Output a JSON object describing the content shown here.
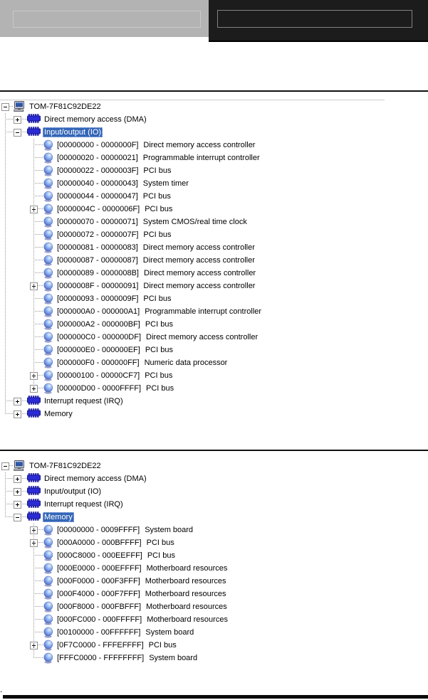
{
  "header": {
    "left_tab": {
      "value": ""
    },
    "right_tab": {
      "value": ""
    }
  },
  "colors": {
    "selection_bg": "#3466b8",
    "chip_blue": "#2b2bd5",
    "header_left_bg": "#b3b3b3",
    "header_right_bg": "#1c1c1c"
  },
  "trees": [
    {
      "name": "io-resources-tree",
      "rows": [
        {
          "depth": 0,
          "expander": "minus",
          "icon": "computer",
          "label": "TOM-7F81C92DE22",
          "selected": false
        },
        {
          "depth": 1,
          "expander": "plus",
          "icon": "chip",
          "label": "Direct memory access (DMA)",
          "selected": false
        },
        {
          "depth": 1,
          "expander": "minus",
          "icon": "chip",
          "label": "Input/output (IO)",
          "selected": true
        },
        {
          "depth": 2,
          "expander": "none",
          "icon": "resource",
          "range": "[00000000 - 0000000F]",
          "device": "Direct memory access controller"
        },
        {
          "depth": 2,
          "expander": "none",
          "icon": "resource",
          "range": "[00000020 - 00000021]",
          "device": "Programmable interrupt controller"
        },
        {
          "depth": 2,
          "expander": "none",
          "icon": "resource",
          "range": "[00000022 - 0000003F]",
          "device": "PCI bus"
        },
        {
          "depth": 2,
          "expander": "none",
          "icon": "resource",
          "range": "[00000040 - 00000043]",
          "device": "System timer"
        },
        {
          "depth": 2,
          "expander": "none",
          "icon": "resource",
          "range": "[00000044 - 00000047]",
          "device": "PCI bus"
        },
        {
          "depth": 2,
          "expander": "plus",
          "icon": "resource",
          "range": "[0000004C - 0000006F]",
          "device": "PCI bus"
        },
        {
          "depth": 2,
          "expander": "none",
          "icon": "resource",
          "range": "[00000070 - 00000071]",
          "device": "System CMOS/real time clock"
        },
        {
          "depth": 2,
          "expander": "none",
          "icon": "resource",
          "range": "[00000072 - 0000007F]",
          "device": "PCI bus"
        },
        {
          "depth": 2,
          "expander": "none",
          "icon": "resource",
          "range": "[00000081 - 00000083]",
          "device": "Direct memory access controller"
        },
        {
          "depth": 2,
          "expander": "none",
          "icon": "resource",
          "range": "[00000087 - 00000087]",
          "device": "Direct memory access controller"
        },
        {
          "depth": 2,
          "expander": "none",
          "icon": "resource",
          "range": "[00000089 - 0000008B]",
          "device": "Direct memory access controller"
        },
        {
          "depth": 2,
          "expander": "plus",
          "icon": "resource",
          "range": "[0000008F - 00000091]",
          "device": "Direct memory access controller"
        },
        {
          "depth": 2,
          "expander": "none",
          "icon": "resource",
          "range": "[00000093 - 0000009F]",
          "device": "PCI bus"
        },
        {
          "depth": 2,
          "expander": "none",
          "icon": "resource",
          "range": "[000000A0 - 000000A1]",
          "device": "Programmable interrupt controller"
        },
        {
          "depth": 2,
          "expander": "none",
          "icon": "resource",
          "range": "[000000A2 - 000000BF]",
          "device": "PCI bus"
        },
        {
          "depth": 2,
          "expander": "none",
          "icon": "resource",
          "range": "[000000C0 - 000000DF]",
          "device": "Direct memory access controller"
        },
        {
          "depth": 2,
          "expander": "none",
          "icon": "resource",
          "range": "[000000E0 - 000000EF]",
          "device": "PCI bus"
        },
        {
          "depth": 2,
          "expander": "none",
          "icon": "resource",
          "range": "[000000F0 - 000000FF]",
          "device": "Numeric data processor"
        },
        {
          "depth": 2,
          "expander": "plus",
          "icon": "resource",
          "range": "[00000100 - 00000CF7]",
          "device": "PCI bus"
        },
        {
          "depth": 2,
          "expander": "plus",
          "icon": "resource",
          "range": "[00000D00 - 0000FFFF]",
          "device": "PCI bus"
        },
        {
          "depth": 1,
          "expander": "plus",
          "icon": "chip",
          "label": "Interrupt request (IRQ)",
          "selected": false
        },
        {
          "depth": 1,
          "expander": "plus",
          "icon": "chip",
          "label": "Memory",
          "selected": false
        }
      ]
    },
    {
      "name": "memory-resources-tree",
      "rows": [
        {
          "depth": 0,
          "expander": "minus",
          "icon": "computer",
          "label": "TOM-7F81C92DE22",
          "selected": false
        },
        {
          "depth": 1,
          "expander": "plus",
          "icon": "chip",
          "label": "Direct memory access (DMA)",
          "selected": false
        },
        {
          "depth": 1,
          "expander": "plus",
          "icon": "chip",
          "label": "Input/output (IO)",
          "selected": false
        },
        {
          "depth": 1,
          "expander": "plus",
          "icon": "chip",
          "label": "Interrupt request (IRQ)",
          "selected": false
        },
        {
          "depth": 1,
          "expander": "minus",
          "icon": "chip",
          "label": "Memory",
          "selected": true
        },
        {
          "depth": 2,
          "expander": "plus",
          "icon": "resource",
          "range": "[00000000 - 0009FFFF]",
          "device": "System board"
        },
        {
          "depth": 2,
          "expander": "plus",
          "icon": "resource",
          "range": "[000A0000 - 000BFFFF]",
          "device": "PCI bus"
        },
        {
          "depth": 2,
          "expander": "none",
          "icon": "resource",
          "range": "[000C8000 - 000EEFFF]",
          "device": "PCI bus"
        },
        {
          "depth": 2,
          "expander": "none",
          "icon": "resource",
          "range": "[000E0000 - 000EFFFF]",
          "device": "Motherboard resources"
        },
        {
          "depth": 2,
          "expander": "none",
          "icon": "resource",
          "range": "[000F0000 - 000F3FFF]",
          "device": "Motherboard resources"
        },
        {
          "depth": 2,
          "expander": "none",
          "icon": "resource",
          "range": "[000F4000 - 000F7FFF]",
          "device": "Motherboard resources"
        },
        {
          "depth": 2,
          "expander": "none",
          "icon": "resource",
          "range": "[000F8000 - 000FBFFF]",
          "device": "Motherboard resources"
        },
        {
          "depth": 2,
          "expander": "none",
          "icon": "resource",
          "range": "[000FC000 - 000FFFFF]",
          "device": "Motherboard resources"
        },
        {
          "depth": 2,
          "expander": "none",
          "icon": "resource",
          "range": "[00100000 - 00FFFFFF]",
          "device": "System board"
        },
        {
          "depth": 2,
          "expander": "plus",
          "icon": "resource",
          "range": "[0F7C0000 - FFFEFFFF]",
          "device": "PCI bus"
        },
        {
          "depth": 2,
          "expander": "none",
          "icon": "resource",
          "range": "[FFFC0000 - FFFFFFFF]",
          "device": "System board"
        }
      ]
    }
  ],
  "footer": {
    "mark": "."
  }
}
